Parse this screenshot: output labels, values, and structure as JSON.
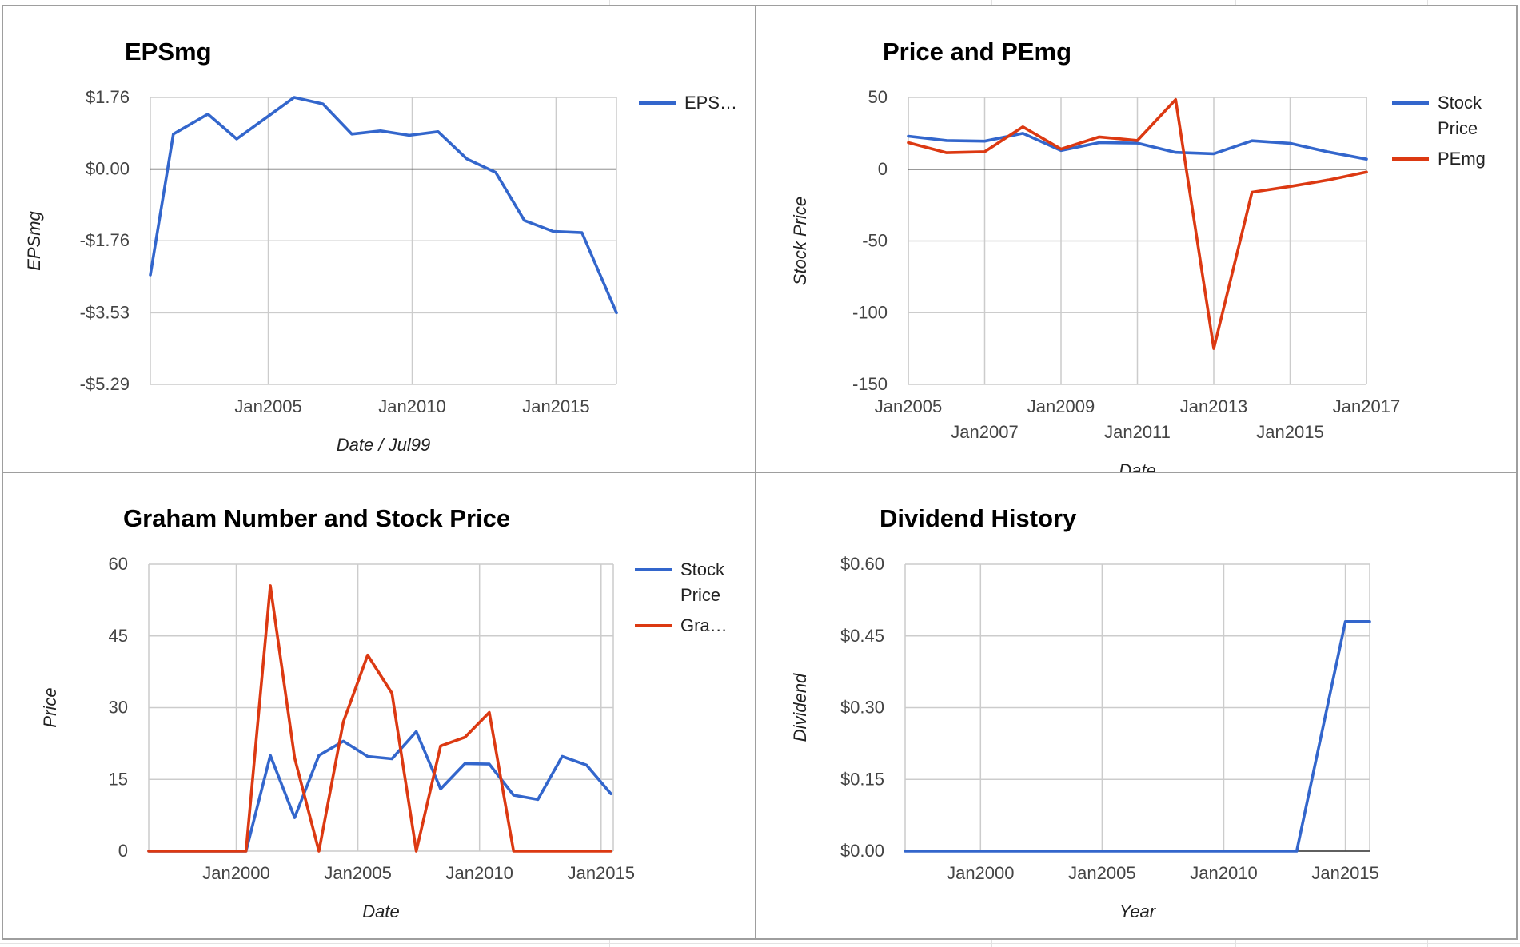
{
  "colors": {
    "blue": "#3366cc",
    "red": "#dc3912"
  },
  "charts": [
    {
      "id": "epsmg",
      "type": "line",
      "title": "EPSmg",
      "xlabel": "Date / Jul99",
      "ylabel": "EPSmg",
      "xlim": [
        2001.4,
        2017.6
      ],
      "ylim": [
        -5.29,
        1.76
      ],
      "yticks": [
        1.76,
        0.0,
        -1.76,
        -3.53,
        -5.29
      ],
      "ytick_labels": [
        "$1.76",
        "$0.00",
        "-$1.76",
        "-$3.53",
        "-$5.29"
      ],
      "xticks": [
        2005.5,
        2010.5,
        2015.5
      ],
      "xtick_labels": [
        "Jan2005",
        "Jan2010",
        "Jan2015"
      ],
      "baseline": 0,
      "legend": "right",
      "series": [
        {
          "name": "EPSmg",
          "legend_label": "EPS…",
          "color": "#3366cc",
          "x": [
            2001.4,
            2002.2,
            2003.4,
            2004.4,
            2005.4,
            2006.4,
            2007.4,
            2008.4,
            2009.4,
            2010.4,
            2011.4,
            2012.4,
            2013.4,
            2014.4,
            2015.4,
            2016.4,
            2017.6
          ],
          "y": [
            -2.6,
            0.86,
            1.35,
            0.74,
            1.25,
            1.76,
            1.6,
            0.86,
            0.94,
            0.83,
            0.92,
            0.25,
            -0.08,
            -1.26,
            -1.53,
            -1.56,
            -3.53
          ]
        }
      ]
    },
    {
      "id": "price-pemg",
      "type": "line",
      "title": "Price and PEmg",
      "xlabel": "Date",
      "ylabel": "Stock Price",
      "xlim": [
        2005.0,
        2017.0
      ],
      "ylim": [
        -150,
        50
      ],
      "yticks": [
        50,
        0,
        -50,
        -100,
        -150
      ],
      "ytick_labels": [
        "50",
        "0",
        "-50",
        "-100",
        "-150"
      ],
      "xticks": [
        2005,
        2007,
        2009,
        2011,
        2013,
        2015,
        2017
      ],
      "xtick_labels": [
        "Jan2005",
        "Jan2007",
        "Jan2009",
        "Jan2011",
        "Jan2013",
        "Jan2015",
        "Jan2017"
      ],
      "xtick_rows": [
        0,
        1,
        0,
        1,
        0,
        1,
        0
      ],
      "baseline": 0,
      "legend": "right",
      "series": [
        {
          "name": "Stock Price",
          "legend_label": [
            "Stock",
            "Price"
          ],
          "color": "#3366cc",
          "x": [
            2005.0,
            2006.0,
            2007.0,
            2008.0,
            2009.0,
            2010.0,
            2011.0,
            2012.0,
            2013.0,
            2014.0,
            2015.0,
            2016.0,
            2017.0
          ],
          "y": [
            23,
            20,
            19.5,
            25,
            13,
            18.5,
            18.2,
            11.7,
            10.8,
            19.8,
            18,
            12,
            7
          ]
        },
        {
          "name": "PEmg",
          "legend_label": [
            "PEmg"
          ],
          "color": "#dc3912",
          "x": [
            2005.0,
            2006.0,
            2007.0,
            2008.0,
            2009.0,
            2010.0,
            2011.0,
            2012.0,
            2013.0,
            2014.0,
            2015.0,
            2016.0,
            2017.0
          ],
          "y": [
            18.5,
            11.5,
            12.2,
            29.5,
            14,
            22.5,
            20,
            48.5,
            -125,
            -16,
            -12,
            -7.5,
            -2
          ]
        }
      ]
    },
    {
      "id": "graham",
      "type": "line",
      "title": "Graham Number and Stock Price",
      "xlabel": "Date",
      "ylabel": "Price",
      "xlim": [
        1996.4,
        2015.5
      ],
      "ylim": [
        0,
        60
      ],
      "yticks": [
        60,
        45,
        30,
        15,
        0
      ],
      "ytick_labels": [
        "60",
        "45",
        "30",
        "15",
        "0"
      ],
      "xticks": [
        2000.0,
        2005.0,
        2010.0,
        2015.0
      ],
      "xtick_labels": [
        "Jan2000",
        "Jan2005",
        "Jan2010",
        "Jan2015"
      ],
      "baseline": null,
      "legend": "right",
      "series": [
        {
          "name": "Stock Price",
          "legend_label": [
            "Stock",
            "Price"
          ],
          "color": "#3366cc",
          "x": [
            1996.4,
            1997.4,
            1998.4,
            1999.4,
            2000.4,
            2001.4,
            2002.4,
            2003.4,
            2004.4,
            2005.4,
            2006.4,
            2007.4,
            2008.4,
            2009.4,
            2010.4,
            2011.4,
            2012.4,
            2013.4,
            2014.4,
            2015.4
          ],
          "y": [
            0,
            0,
            0,
            0,
            0,
            20,
            7,
            20,
            23,
            19.8,
            19.3,
            25,
            13,
            18.3,
            18.2,
            11.7,
            10.8,
            19.8,
            18,
            12
          ]
        },
        {
          "name": "Graham Number",
          "legend_label": [
            "Gra…"
          ],
          "color": "#dc3912",
          "x": [
            1996.4,
            1997.4,
            1998.4,
            1999.4,
            2000.4,
            2001.4,
            2002.4,
            2003.4,
            2004.4,
            2005.4,
            2006.4,
            2007.4,
            2008.4,
            2009.4,
            2010.4,
            2011.4,
            2012.4,
            2013.4,
            2014.4,
            2015.4
          ],
          "y": [
            0,
            0,
            0,
            0,
            0,
            55.5,
            19.5,
            0,
            27,
            41,
            33,
            0,
            22,
            23.8,
            29,
            0,
            0,
            0,
            0,
            0
          ]
        }
      ]
    },
    {
      "id": "dividend",
      "type": "line",
      "title": "Dividend History",
      "xlabel": "Year",
      "ylabel": "Dividend",
      "xlim": [
        1996.9,
        2016.0
      ],
      "ylim": [
        0,
        0.6
      ],
      "yticks": [
        0.6,
        0.45,
        0.3,
        0.15,
        0.0
      ],
      "ytick_labels": [
        "$0.60",
        "$0.45",
        "$0.30",
        "$0.15",
        "$0.00"
      ],
      "xticks": [
        2000.0,
        2005.0,
        2010.0,
        2015.0
      ],
      "xtick_labels": [
        "Jan2000",
        "Jan2005",
        "Jan2010",
        "Jan2015"
      ],
      "baseline": 0,
      "legend": "none",
      "series": [
        {
          "name": "Dividend",
          "color": "#3366cc",
          "x": [
            1996.9,
            2013.0,
            2015.0,
            2016.0
          ],
          "y": [
            0,
            0,
            0.48,
            0.48
          ]
        }
      ]
    }
  ]
}
